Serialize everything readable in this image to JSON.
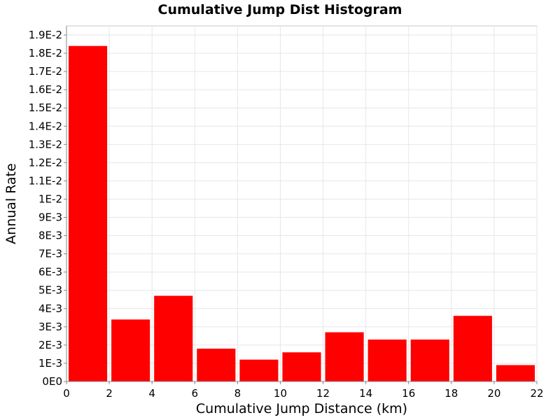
{
  "chart_data": {
    "type": "bar",
    "title": "Cumulative Jump Dist Histogram",
    "xlabel": "Cumulative Jump Distance (km)",
    "ylabel": "Annual Rate",
    "xlim": [
      0,
      22
    ],
    "ylim": [
      0,
      0.0195
    ],
    "x_ticks": [
      0,
      2,
      4,
      6,
      8,
      10,
      12,
      14,
      16,
      18,
      20,
      22
    ],
    "x_tick_labels": [
      "0",
      "2",
      "4",
      "6",
      "8",
      "10",
      "12",
      "14",
      "16",
      "18",
      "20",
      "22"
    ],
    "y_ticks": [
      0,
      0.001,
      0.002,
      0.003,
      0.004,
      0.005,
      0.006,
      0.007,
      0.008,
      0.009,
      0.01,
      0.011,
      0.012,
      0.013,
      0.014,
      0.015,
      0.016,
      0.017,
      0.018,
      0.019
    ],
    "y_tick_labels": [
      "0E0",
      "1E-3",
      "2E-3",
      "3E-3",
      "4E-3",
      "5E-3",
      "6E-3",
      "7E-3",
      "8E-3",
      "9E-3",
      "1E-2",
      "1.1E-2",
      "1.2E-2",
      "1.3E-2",
      "1.4E-2",
      "1.5E-2",
      "1.6E-2",
      "1.7E-2",
      "1.8E-2",
      "1.9E-2"
    ],
    "bin_edges": [
      0,
      2,
      4,
      6,
      8,
      10,
      12,
      14,
      16,
      18,
      20,
      22
    ],
    "values": [
      0.0184,
      0.0034,
      0.0047,
      0.0018,
      0.0012,
      0.0016,
      0.0027,
      0.0023,
      0.0023,
      0.0036,
      0.0009
    ],
    "bar_color": "#ff0000",
    "grid": true,
    "legend": false
  }
}
